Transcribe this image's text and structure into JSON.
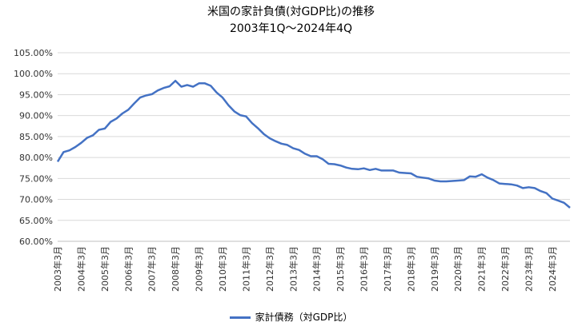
{
  "chart_data": {
    "type": "line",
    "title": "米国の家計負債(対GDP比)の推移",
    "subtitle": "2003年1Q～2024年4Q",
    "xlabel": "",
    "ylabel": "",
    "ylim": [
      60,
      105
    ],
    "yticks": [
      "60.00%",
      "65.00%",
      "70.00%",
      "75.00%",
      "80.00%",
      "85.00%",
      "90.00%",
      "95.00%",
      "100.00%",
      "105.00%"
    ],
    "xtick_labels": [
      "2003年3月",
      "2004年3月",
      "2005年3月",
      "2006年3月",
      "2007年3月",
      "2008年3月",
      "2009年3月",
      "2010年3月",
      "2011年3月",
      "2012年3月",
      "2013年3月",
      "2014年3月",
      "2015年3月",
      "2016年3月",
      "2017年3月",
      "2018年3月",
      "2019年3月",
      "2020年3月",
      "2021年3月",
      "2022年3月",
      "2023年3月",
      "2024年3月"
    ],
    "grid": "horizontal",
    "legend_position": "bottom",
    "series": [
      {
        "name": "家計債務（対GDP比）",
        "color": "#4472C4",
        "values": [
          79.0,
          81.3,
          81.7,
          82.5,
          83.5,
          84.7,
          85.3,
          86.6,
          86.9,
          88.5,
          89.3,
          90.5,
          91.4,
          92.9,
          94.3,
          94.8,
          95.1,
          96.0,
          96.6,
          97.0,
          98.3,
          96.9,
          97.3,
          96.9,
          97.7,
          97.7,
          97.1,
          95.5,
          94.3,
          92.5,
          91.0,
          90.1,
          89.8,
          88.2,
          87.0,
          85.6,
          84.6,
          83.9,
          83.3,
          83.0,
          82.2,
          81.8,
          80.9,
          80.3,
          80.3,
          79.6,
          78.5,
          78.4,
          78.1,
          77.6,
          77.3,
          77.2,
          77.4,
          77.0,
          77.3,
          76.9,
          76.9,
          76.9,
          76.4,
          76.3,
          76.2,
          75.4,
          75.2,
          75.0,
          74.5,
          74.3,
          74.3,
          74.4,
          74.5,
          74.6,
          75.5,
          75.4,
          76.0,
          75.2,
          74.6,
          73.8,
          73.7,
          73.6,
          73.3,
          72.7,
          72.9,
          72.7,
          72.0,
          71.5,
          70.2,
          69.7,
          69.2,
          68.0
        ]
      }
    ]
  }
}
